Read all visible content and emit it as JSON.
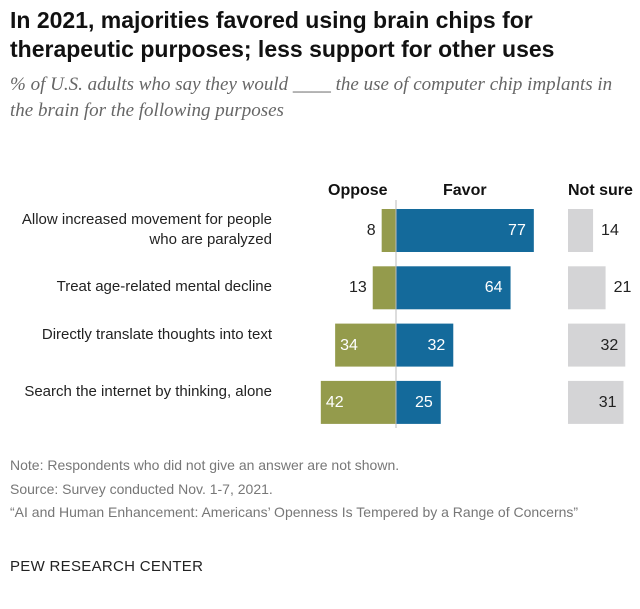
{
  "title": "In 2021, majorities favored using brain chips for therapeutic purposes; less support for other uses",
  "subtitle": "% of U.S. adults who say they would ____ the use of computer chip implants in the brain for the following purposes",
  "colors": {
    "oppose": "#949b4c",
    "favor": "#146a9b",
    "not_sure": "#d4d4d6"
  },
  "chart_data": {
    "type": "bar",
    "orientation": "horizontal diverging",
    "categories": [
      "Allow increased movement for people who are paralyzed",
      "Treat age-related mental decline",
      "Directly translate thoughts into text",
      "Search the internet by thinking, alone"
    ],
    "series": [
      {
        "name": "Oppose",
        "values": [
          8,
          13,
          34,
          42
        ]
      },
      {
        "name": "Favor",
        "values": [
          77,
          64,
          32,
          25
        ]
      },
      {
        "name": "Not sure",
        "values": [
          14,
          21,
          32,
          31
        ]
      }
    ]
  },
  "notes": {
    "note": "Note: Respondents who did not give an answer are not shown.",
    "source": "Source: Survey conducted Nov. 1-7, 2021.",
    "report": "“AI and Human Enhancement: Americans’ Openness Is Tempered by a Range of Concerns”"
  },
  "brand": "PEW RESEARCH CENTER"
}
